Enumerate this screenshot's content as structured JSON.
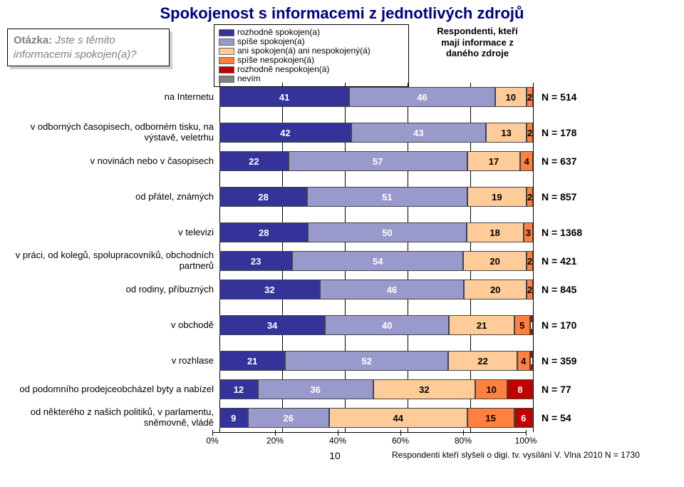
{
  "title": "Spokojenost s informacemi z jednotlivých zdrojů",
  "question": {
    "label": "Otázka:",
    "text_line1": "Jste s těmito",
    "text_line2": "informacemi spokojen(a)?"
  },
  "legend": {
    "items": [
      {
        "label": "rozhodně spokojen(a)",
        "color": "#333399"
      },
      {
        "label": "spíše spokojen(a)",
        "color": "#9999cc"
      },
      {
        "label": "ani spokojen(á) ani nespokojený(á)",
        "color": "#ffcc99"
      },
      {
        "label": "spíše nespokojen(á)",
        "color": "#ff8040"
      },
      {
        "label": "rozhodně nespokojen(á)",
        "color": "#c00000"
      },
      {
        "label": "nevím",
        "color": "#808080"
      }
    ]
  },
  "respondents_note": "Respondenti, kteří mají informace z daného zdroje",
  "chart": {
    "type": "stacked-bar-horizontal",
    "xlim": [
      0,
      100
    ],
    "xtick_step": 20,
    "xticks": [
      "0%",
      "20%",
      "40%",
      "60%",
      "80%",
      "100%"
    ],
    "segment_colors": [
      "#333399",
      "#9999cc",
      "#ffcc99",
      "#ff8040",
      "#c00000",
      "#808080"
    ],
    "segment_text_dark_on": [
      false,
      false,
      true,
      true,
      false,
      false
    ],
    "groups": [
      {
        "rows": [
          {
            "label": "na Internetu",
            "values": [
              41,
              46,
              10,
              2,
              0,
              0
            ],
            "display": [
              "41",
              "46",
              "10",
              "2",
              "",
              ""
            ],
            "n": "N = 514"
          }
        ]
      },
      {
        "rows": [
          {
            "label": "v odborných časopisech, odborném tisku, na výstavě, veletrhu",
            "values": [
              42,
              43,
              13,
              2,
              0,
              0
            ],
            "display": [
              "42",
              "43",
              "13",
              "2",
              "",
              ""
            ],
            "n": "N = 178"
          },
          {
            "label": "v novinách nebo v časopisech",
            "values": [
              22,
              57,
              17,
              4,
              0,
              0
            ],
            "display": [
              "22",
              "57",
              "17",
              "4",
              "0",
              ""
            ],
            "n": "N = 637"
          }
        ]
      },
      {
        "rows": [
          {
            "label": "od přátel, známých",
            "values": [
              28,
              51,
              19,
              2,
              0,
              0
            ],
            "display": [
              "28",
              "51",
              "19",
              "2",
              "",
              ""
            ],
            "n": "N = 857"
          }
        ]
      },
      {
        "rows": [
          {
            "label": "v televizi",
            "values": [
              28,
              50,
              18,
              3,
              0,
              0
            ],
            "display": [
              "28",
              "50",
              "18",
              "3",
              "",
              ""
            ],
            "n": "N = 1368"
          },
          {
            "label": "v práci, od kolegů, spolupracovníků, obchodních partnerů",
            "values": [
              23,
              54,
              20,
              2,
              0,
              0
            ],
            "display": [
              "23",
              "54",
              "20",
              "2",
              "",
              ""
            ],
            "n": "N = 421"
          },
          {
            "label": "od rodiny, příbuzných",
            "values": [
              32,
              46,
              20,
              2,
              0,
              0
            ],
            "display": [
              "32",
              "46",
              "20",
              "2",
              "",
              ""
            ],
            "n": "N = 845"
          }
        ]
      },
      {
        "rows": [
          {
            "label": "v obchodě",
            "values": [
              34,
              40,
              21,
              5,
              1,
              0
            ],
            "display": [
              "34",
              "40",
              "21",
              "5",
              "1",
              ""
            ],
            "n": "N = 170"
          }
        ]
      },
      {
        "rows": [
          {
            "label": "v rozhlase",
            "values": [
              21,
              52,
              22,
              4,
              1,
              0
            ],
            "display": [
              "21",
              "52",
              "22",
              "4",
              "1",
              ""
            ],
            "n": "N = 359"
          },
          {
            "label": "od podomního prodejceobcházel byty a nabízel",
            "values": [
              12,
              36,
              32,
              10,
              8,
              0
            ],
            "display": [
              "12",
              "36",
              "32",
              "10",
              "8",
              ""
            ],
            "n": "N = 77"
          },
          {
            "label": "od některého z našich politiků, v parlamentu, sněmovně, vládě",
            "values": [
              9,
              26,
              44,
              15,
              6,
              0
            ],
            "display": [
              "9",
              "26",
              "44",
              "15",
              "6",
              ""
            ],
            "n": "N = 54"
          }
        ]
      }
    ]
  },
  "footer": {
    "page_number": "10",
    "source": "Respondenti kteří slyšeli o digi. tv. vysílání V. Vlna 2010 N = 1730"
  }
}
